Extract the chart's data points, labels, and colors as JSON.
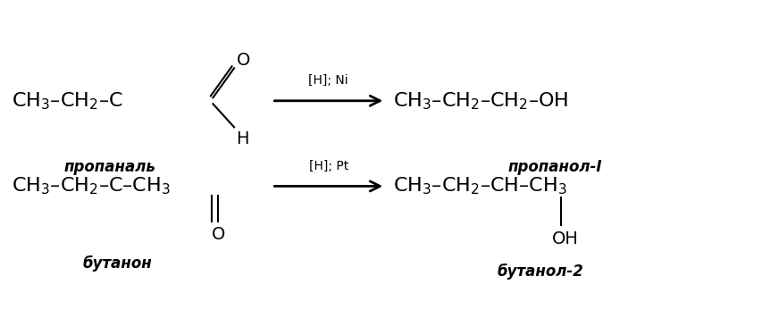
{
  "bg_color": "#ffffff",
  "fig_width": 8.54,
  "fig_height": 3.56,
  "dpi": 100,
  "reaction1": {
    "reactant_label": "пропаналь",
    "arrow_label_top": "[H]; Ni",
    "product_label": "пропанол-І"
  },
  "reaction2": {
    "reactant_label": "бутанон",
    "arrow_label_top": "[H]; Pt",
    "product_label": "бутанол-2"
  },
  "font_size_formula": 16,
  "font_size_label": 12,
  "font_size_arrow": 10,
  "text_color": "#000000"
}
